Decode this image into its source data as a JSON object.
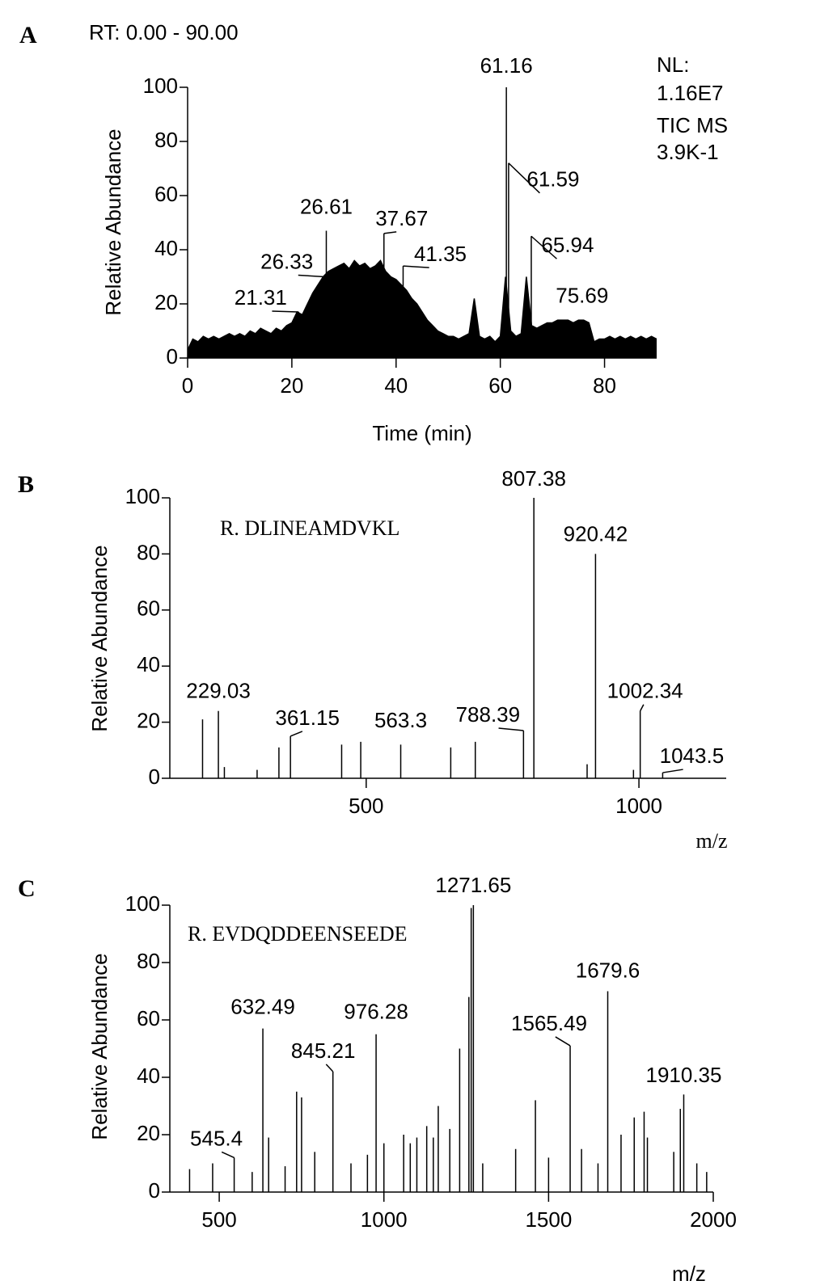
{
  "chart_data": [
    {
      "type": "chromatogram",
      "panel": "A",
      "header": "RT: 0.00 - 90.00",
      "notes": [
        "NL:",
        "1.16E7",
        "TIC MS",
        "3.9K-1"
      ],
      "xlabel": "Time (min)",
      "ylabel": "Relative Abundance",
      "xlim": [
        0,
        90
      ],
      "xticks": [
        0,
        20,
        40,
        60,
        80
      ],
      "ylim": [
        0,
        100
      ],
      "yticks": [
        0,
        20,
        40,
        60,
        80,
        100
      ],
      "color": "#000000",
      "x": [
        0,
        1,
        2,
        3,
        4,
        5,
        6,
        7,
        8,
        9,
        10,
        11,
        12,
        13,
        14,
        15,
        16,
        17,
        18,
        19,
        20,
        21,
        22,
        23,
        24,
        25,
        26,
        27,
        28,
        29,
        30,
        31,
        32,
        33,
        34,
        35,
        36,
        37,
        38,
        39,
        40,
        41,
        42,
        43,
        44,
        45,
        46,
        47,
        48,
        49,
        50,
        51,
        52,
        53,
        54,
        55,
        56,
        57,
        58,
        59,
        60,
        61,
        62,
        63,
        64,
        65,
        66,
        67,
        68,
        69,
        70,
        71,
        72,
        73,
        74,
        75,
        76,
        77,
        78,
        79,
        80,
        81,
        82,
        83,
        84,
        85,
        86,
        87,
        88,
        89,
        90
      ],
      "values": [
        3,
        7,
        6,
        8,
        7,
        8,
        7,
        8,
        9,
        8,
        9,
        8,
        10,
        9,
        11,
        10,
        9,
        11,
        10,
        12,
        13,
        17,
        16,
        20,
        24,
        27,
        30,
        32,
        33,
        34,
        35,
        33,
        36,
        34,
        35,
        33,
        34,
        36,
        32,
        30,
        29,
        27,
        25,
        22,
        20,
        17,
        14,
        12,
        10,
        9,
        8,
        8,
        7,
        8,
        9,
        22,
        8,
        7,
        8,
        6,
        8,
        30,
        10,
        8,
        9,
        30,
        12,
        11,
        12,
        13,
        13,
        14,
        14,
        14,
        13,
        14,
        14,
        13,
        6,
        7,
        7,
        8,
        7,
        8,
        7,
        8,
        7,
        8,
        7,
        8,
        7
      ],
      "annotated_peaks": {
        "x": [
          21.31,
          26.33,
          26.61,
          37.67,
          41.35,
          61.16,
          61.59,
          65.94,
          75.69
        ],
        "y": [
          17,
          30,
          47,
          46,
          34,
          100,
          72,
          45,
          13
        ]
      }
    },
    {
      "type": "spectrum",
      "panel": "B",
      "annotation": "R. DLINEAMDVKL",
      "xlabel": "m/z",
      "ylabel": "Relative Abundance",
      "xlim": [
        140,
        1160
      ],
      "xticks": [
        500,
        1000
      ],
      "ylim": [
        0,
        100
      ],
      "yticks": [
        0,
        20,
        40,
        60,
        80,
        100
      ],
      "color": "#000000",
      "peaks": {
        "x": [
          200,
          240,
          300,
          340,
          455,
          490,
          655,
          700,
          905,
          990
        ],
        "y": [
          21,
          4,
          3,
          11,
          12,
          13,
          11,
          13,
          5,
          3
        ]
      },
      "annotated_peaks": {
        "x": [
          229.03,
          361.15,
          563.3,
          788.39,
          807.38,
          920.42,
          1002.34,
          1043.5
        ],
        "y": [
          24,
          15,
          12,
          17,
          100,
          80,
          24,
          2
        ]
      }
    },
    {
      "type": "spectrum",
      "panel": "C",
      "annotation": "R. EVDQDDEENSEEDE",
      "xlabel": "m/z",
      "ylabel": "Relative Abundance",
      "xlim": [
        350,
        2000
      ],
      "xticks": [
        500,
        1000,
        1500,
        2000
      ],
      "ylim": [
        0,
        100
      ],
      "yticks": [
        0,
        20,
        40,
        60,
        80,
        100
      ],
      "color": "#000000",
      "peaks": {
        "x": [
          410,
          480,
          600,
          650,
          700,
          735,
          750,
          790,
          900,
          950,
          1000,
          1060,
          1080,
          1100,
          1130,
          1150,
          1165,
          1200,
          1230,
          1258,
          1265,
          1300,
          1400,
          1460,
          1500,
          1600,
          1650,
          1720,
          1760,
          1790,
          1800,
          1880,
          1900,
          1950,
          1980
        ],
        "y": [
          8,
          10,
          7,
          19,
          9,
          35,
          33,
          14,
          10,
          13,
          17,
          20,
          17,
          19,
          23,
          19,
          30,
          22,
          50,
          68,
          99,
          10,
          15,
          32,
          12,
          15,
          10,
          20,
          26,
          28,
          19,
          14,
          29,
          10,
          7
        ]
      },
      "annotated_peaks": {
        "x": [
          545.4,
          632.49,
          845.21,
          976.28,
          1271.65,
          1565.49,
          1679.6,
          1910.35
        ],
        "y": [
          12,
          57,
          42,
          55,
          100,
          51,
          70,
          34
        ]
      }
    }
  ]
}
